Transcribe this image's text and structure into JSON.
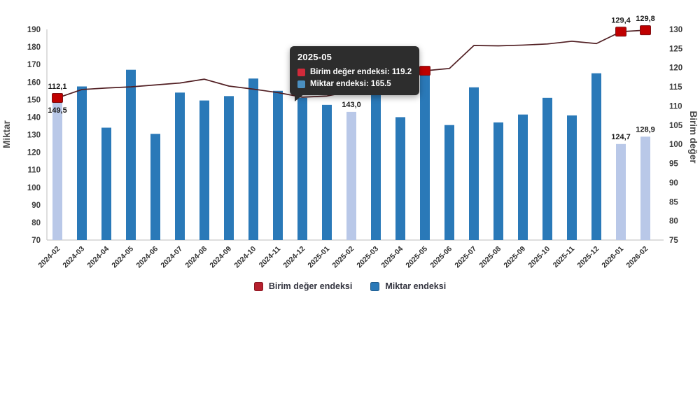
{
  "page": {
    "background": "#ffffff"
  },
  "legend": {
    "items": [
      {
        "label": "Birim değer endeksi",
        "color": "#b6202e"
      },
      {
        "label": "Miktar endeksi",
        "color": "#2a79b8"
      }
    ]
  },
  "tooltip": {
    "background": "#2d2d2d",
    "title": "2025-05",
    "rows": [
      {
        "chip_color": "#d02a3a",
        "text": "Birim değer endeksi: 119.2"
      },
      {
        "chip_color": "#4a8fc0",
        "text": "Miktar endeksi: 165.5"
      }
    ]
  },
  "chart_data": {
    "type": "bar",
    "subtype": "combo-bar-line",
    "grid": false,
    "legend_position": "bottom",
    "categories": [
      "2024-02",
      "2024-03",
      "2024-04",
      "2024-05",
      "2024-06",
      "2024-07",
      "2024-08",
      "2024-09",
      "2024-10",
      "2024-11",
      "2024-12",
      "2025-01",
      "2025-02",
      "2025-03",
      "2025-04",
      "2025-05",
      "2025-06",
      "2025-07",
      "2025-08",
      "2025-09",
      "2025-10",
      "2025-11",
      "2025-12",
      "2026-01",
      "2026-02"
    ],
    "series": [
      {
        "name": "Miktar endeksi",
        "type": "bar",
        "axis": "left",
        "color": "#2a79b8",
        "highlight_color": "#b9c8e8",
        "highlight_categories": [
          "2024-02",
          "2025-02",
          "2026-01",
          "2026-02"
        ],
        "values": [
          149.5,
          157.5,
          134,
          167,
          130.5,
          154,
          149.5,
          152,
          162,
          155,
          151,
          147,
          143,
          160,
          140,
          165.5,
          135.5,
          157,
          137,
          141.5,
          151,
          141,
          165,
          124.7,
          128.9
        ]
      },
      {
        "name": "Birim değer endeksi",
        "type": "line",
        "axis": "right",
        "color": "#511f23",
        "marker_color": "#c00000",
        "marker_border": "#7f1114",
        "marker_categories": [
          "2024-02",
          "2025-05",
          "2026-01",
          "2026-02"
        ],
        "values": [
          112.1,
          114.3,
          114.7,
          115,
          115.5,
          116,
          117,
          115.2,
          114.4,
          113.5,
          112.3,
          112.6,
          113.8,
          115.5,
          117.4,
          119.2,
          119.8,
          125.8,
          125.7,
          125.9,
          126.2,
          126.9,
          126.3,
          129.4,
          129.8
        ]
      }
    ],
    "left_axis": {
      "title": "Miktar",
      "min": 70,
      "max": 190,
      "step": 10
    },
    "right_axis": {
      "title": "Birim değer",
      "min": 75,
      "max": 130,
      "step": 5
    },
    "point_labels": [
      {
        "category": "2024-02",
        "series": "line",
        "text": "112,1",
        "position": "above"
      },
      {
        "category": "2024-02",
        "series": "line",
        "text": "149,5",
        "position": "below"
      },
      {
        "category": "2025-02",
        "series": "bar",
        "text": "143,0",
        "position": "above"
      },
      {
        "category": "2026-01",
        "series": "bar",
        "text": "124,7",
        "position": "above"
      },
      {
        "category": "2026-02",
        "series": "bar",
        "text": "128,9",
        "position": "above"
      },
      {
        "category": "2026-01",
        "series": "line",
        "text": "129,4",
        "position": "above"
      },
      {
        "category": "2026-02",
        "series": "line",
        "text": "129,8",
        "position": "above"
      }
    ]
  }
}
